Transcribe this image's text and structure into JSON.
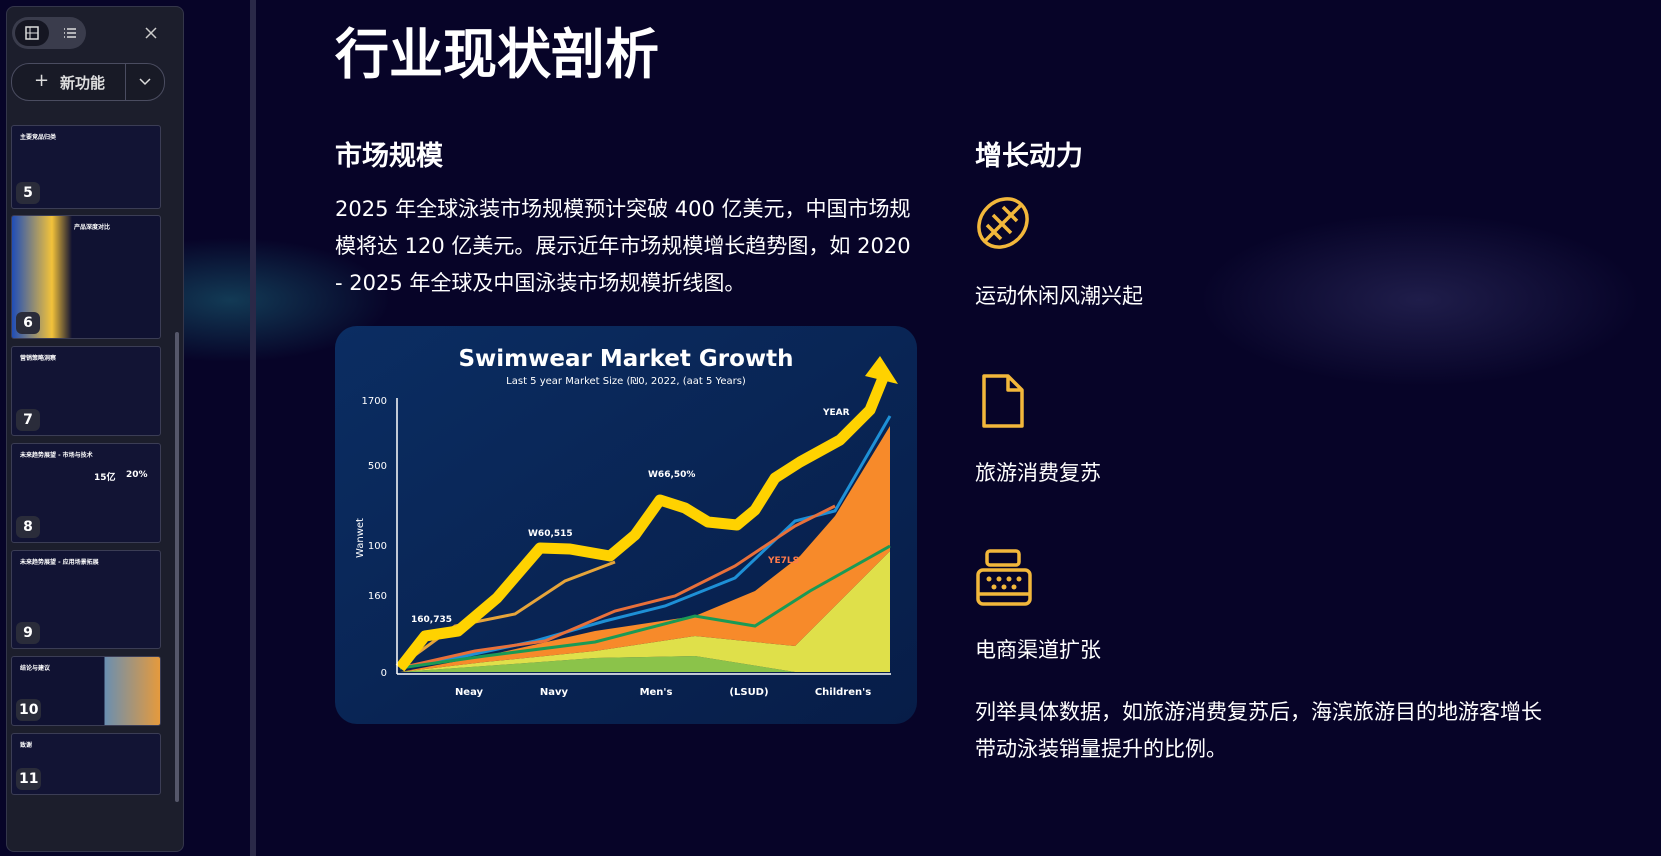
{
  "sidebar": {
    "new_feature_button": "新功能",
    "slides": [
      {
        "number": "5",
        "title": "主要竞品归类"
      },
      {
        "number": "6",
        "title": "产品深度对比"
      },
      {
        "number": "7",
        "title": "营销策略洞察"
      },
      {
        "number": "8",
        "title": "未来趋势展望 - 市场与技术",
        "stats": [
          "15亿",
          "20%"
        ]
      },
      {
        "number": "9",
        "title": "未来趋势展望 - 应用场景拓展"
      },
      {
        "number": "10",
        "title": "结论与建议"
      },
      {
        "number": "11",
        "title": "致谢"
      }
    ]
  },
  "slide": {
    "title": "行业现状剖析",
    "left": {
      "heading": "市场规模",
      "paragraph": "2025 年全球泳装市场规模预计突破 400 亿美元，中国市场规模将达 120 亿美元。展示近年市场规模增长趋势图，如 2020 - 2025 年全球及中国泳装市场规模折线图。",
      "chart_image": {
        "title": "Swimwear Market Growth",
        "subtitle": "Last 5 year Market Size (₪0, 2022, (aat 5 Years)",
        "y_label": "Wanwet",
        "y_labels": [
          "1700",
          "500",
          "100",
          "160",
          "0"
        ],
        "x_labels": [
          "Neay",
          "Navy",
          "Men's",
          "(LSUD)",
          "Children's"
        ],
        "annotations": [
          "160,735",
          "W60,515",
          "W66,50%",
          "YEAR",
          "YE7LS"
        ]
      }
    },
    "right": {
      "heading": "增长动力",
      "items": [
        "运动休闲风潮兴起",
        "旅游消费复苏",
        "电商渠道扩张"
      ],
      "paragraph": "列举具体数据，如旅游消费复苏后，海滨旅游目的地游客增长带动泳装销量提升的比例。"
    }
  }
}
